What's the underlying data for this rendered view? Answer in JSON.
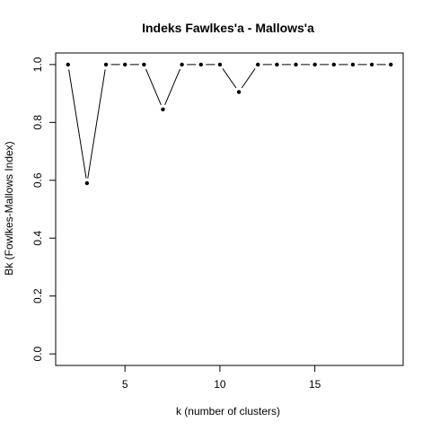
{
  "chart_data": {
    "type": "line",
    "title": "Indeks Fawlkes'a - Mallows'a",
    "xlabel": "k (number of clusters)",
    "ylabel": "Bk (Fowlkes-Mallows Index)",
    "xlim": [
      1.35,
      19.65
    ],
    "ylim": [
      -0.04,
      1.04
    ],
    "x_ticks": [
      5,
      10,
      15
    ],
    "x_tick_labels": [
      "5",
      "10",
      "15"
    ],
    "y_ticks": [
      0.0,
      0.2,
      0.4,
      0.6,
      0.8,
      1.0
    ],
    "y_tick_labels": [
      "0.0",
      "0.2",
      "0.4",
      "0.6",
      "0.8",
      "1.0"
    ],
    "grid": false,
    "series": [
      {
        "x": [
          2,
          3,
          4,
          5,
          6,
          7,
          8,
          9,
          10,
          11,
          12,
          13,
          14,
          15,
          16,
          17,
          18,
          19
        ],
        "values": [
          1.0,
          0.59,
          1.0,
          1.0,
          1.0,
          0.845,
          1.0,
          1.0,
          1.0,
          0.905,
          1.0,
          1.0,
          1.0,
          1.0,
          1.0,
          1.0,
          1.0,
          1.0
        ]
      }
    ],
    "colors": {
      "line": "#000000",
      "point": "#000000",
      "axis": "#000000"
    }
  }
}
